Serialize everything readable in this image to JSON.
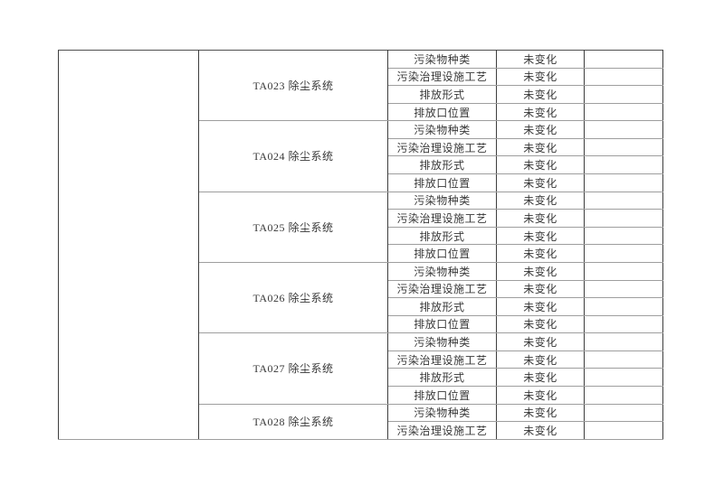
{
  "page": {
    "background_color": "#ffffff"
  },
  "table": {
    "grid_line_color": "#9e9e9e",
    "grid_dark_line_color": "#3e3e3e",
    "text_color": "#383838",
    "groups": [
      {
        "system": "TA023 除尘系统",
        "rows": [
          {
            "attribute": "污染物种类",
            "status": "未变化"
          },
          {
            "attribute": "污染治理设施工艺",
            "status": "未变化"
          },
          {
            "attribute": "排放形式",
            "status": "未变化"
          },
          {
            "attribute": "排放口位置",
            "status": "未变化"
          }
        ]
      },
      {
        "system": "TA024 除尘系统",
        "rows": [
          {
            "attribute": "污染物种类",
            "status": "未变化"
          },
          {
            "attribute": "污染治理设施工艺",
            "status": "未变化"
          },
          {
            "attribute": "排放形式",
            "status": "未变化"
          },
          {
            "attribute": "排放口位置",
            "status": "未变化"
          }
        ]
      },
      {
        "system": "TA025 除尘系统",
        "rows": [
          {
            "attribute": "污染物种类",
            "status": "未变化"
          },
          {
            "attribute": "污染治理设施工艺",
            "status": "未变化"
          },
          {
            "attribute": "排放形式",
            "status": "未变化"
          },
          {
            "attribute": "排放口位置",
            "status": "未变化"
          }
        ]
      },
      {
        "system": "TA026 除尘系统",
        "rows": [
          {
            "attribute": "污染物种类",
            "status": "未变化"
          },
          {
            "attribute": "污染治理设施工艺",
            "status": "未变化"
          },
          {
            "attribute": "排放形式",
            "status": "未变化"
          },
          {
            "attribute": "排放口位置",
            "status": "未变化"
          }
        ]
      },
      {
        "system": "TA027 除尘系统",
        "rows": [
          {
            "attribute": "污染物种类",
            "status": "未变化"
          },
          {
            "attribute": "污染治理设施工艺",
            "status": "未变化"
          },
          {
            "attribute": "排放形式",
            "status": "未变化"
          },
          {
            "attribute": "排放口位置",
            "status": "未变化"
          }
        ]
      },
      {
        "system": "TA028 除尘系统",
        "rows": [
          {
            "attribute": "污染物种类",
            "status": "未变化"
          },
          {
            "attribute": "污染治理设施工艺",
            "status": "未变化"
          }
        ]
      }
    ]
  }
}
